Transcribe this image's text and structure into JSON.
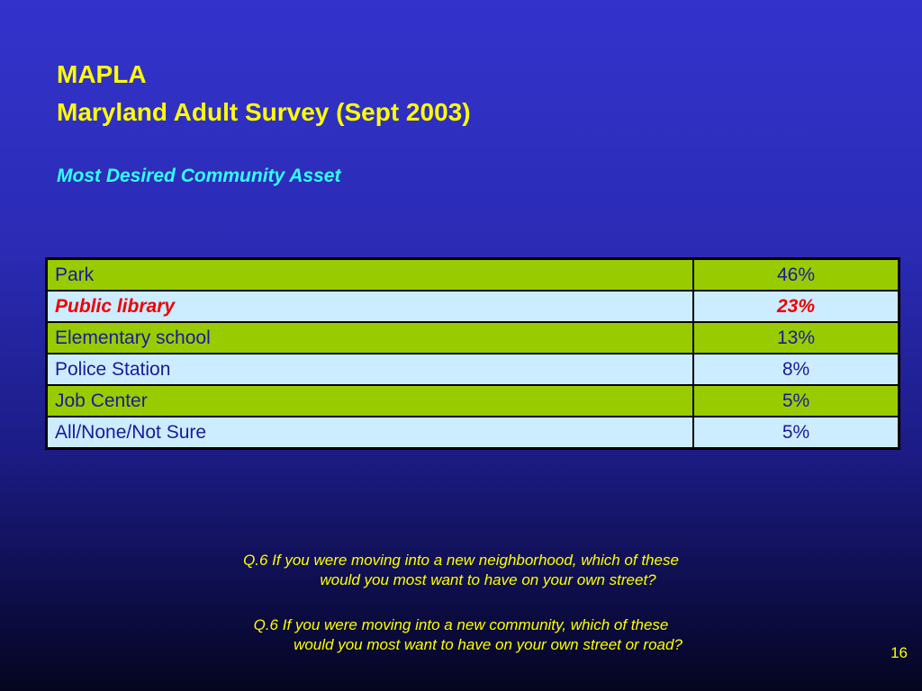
{
  "slide": {
    "title_line1": "MAPLA",
    "title_line2": "Maryland Adult Survey (Sept 2003)",
    "subtitle": "Most Desired Community Asset",
    "page_number": "16"
  },
  "table": {
    "rows": [
      {
        "label": "Park",
        "value": "46%"
      },
      {
        "label": "Public library",
        "value": "23%"
      },
      {
        "label": "Elementary school",
        "value": "13%"
      },
      {
        "label": "Police Station",
        "value": "8%"
      },
      {
        "label": "Job Center",
        "value": "5%"
      },
      {
        "label": "All/None/Not Sure",
        "value": "5%"
      }
    ],
    "highlighted_row": "Public library"
  },
  "questions": [
    {
      "line1": "Q.6  If you were moving into a new neighborhood, which of these",
      "line2": "would you most want to have on your own street?"
    },
    {
      "line1": "Q.6  If you were moving into a new community, which of these",
      "line2": "would you most want to have on your own street or road?"
    }
  ],
  "colors": {
    "background_top": "#3333cc",
    "background_bottom": "#050520",
    "title": "#ffff00",
    "subtitle": "#33ffff",
    "row_green": "#99cc00",
    "row_light": "#ccecff",
    "row_text": "#1a1a99",
    "highlight_text": "#ee0000"
  }
}
